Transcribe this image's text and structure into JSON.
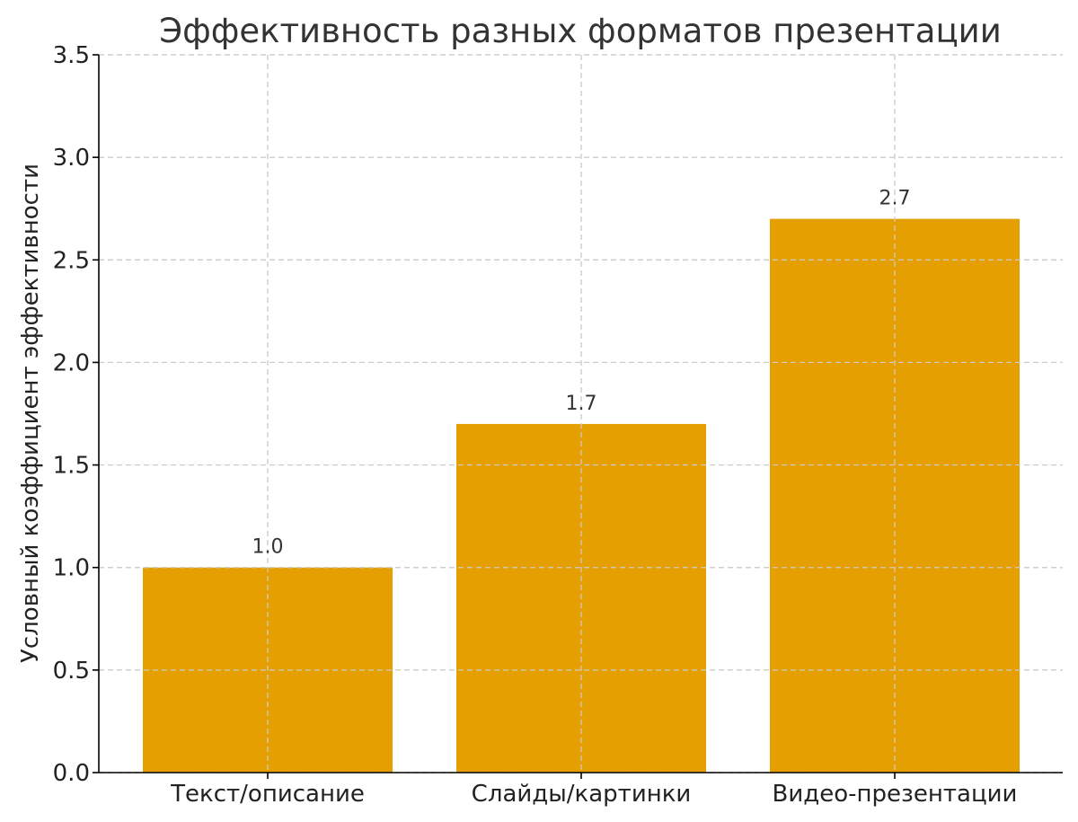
{
  "chart_data": {
    "type": "bar",
    "title": "Эффективность разных форматов презентации",
    "xlabel": "",
    "ylabel": "Условный коэффициент эффективности",
    "categories": [
      "Текст/описание",
      "Слайды/картинки",
      "Видео-презентации"
    ],
    "values": [
      1.0,
      1.7,
      2.7
    ],
    "value_labels": [
      "1.0",
      "1.7",
      "2.7"
    ],
    "ylim": [
      0,
      3.5
    ],
    "yticks": [
      0.0,
      0.5,
      1.0,
      1.5,
      2.0,
      2.5,
      3.0,
      3.5
    ],
    "ytick_labels": [
      "0.0",
      "0.5",
      "1.0",
      "1.5",
      "2.0",
      "2.5",
      "3.0",
      "3.5"
    ],
    "bar_color": "#E69F00",
    "grid": true,
    "grid_style": "dashed"
  }
}
